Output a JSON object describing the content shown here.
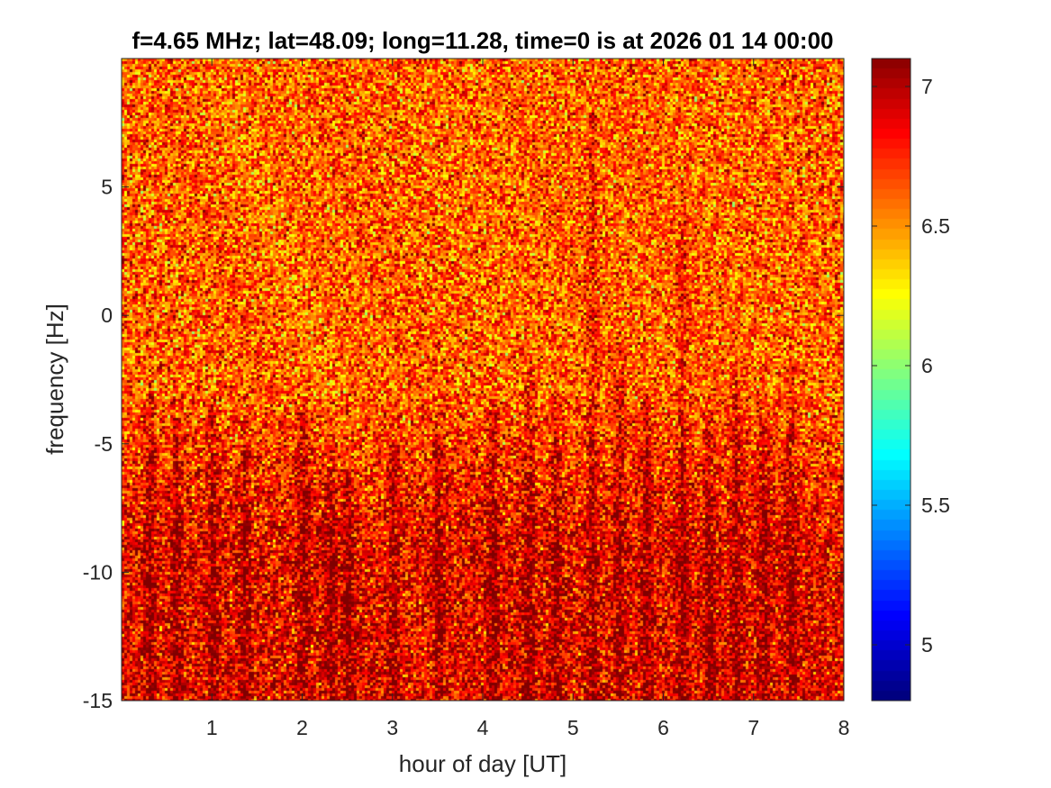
{
  "chart_data": {
    "type": "heatmap",
    "title": "f=4.65 MHz;  lat=48.09; long=11.28, time=0 is at 2026 01 14 00:00",
    "xlabel": "hour of day [UT]",
    "ylabel": "frequency [Hz]",
    "xlim": [
      0,
      8
    ],
    "ylim": [
      -15,
      10
    ],
    "x_ticks": [
      "1",
      "2",
      "3",
      "4",
      "5",
      "6",
      "7",
      "8"
    ],
    "x_tick_values": [
      1,
      2,
      3,
      4,
      5,
      6,
      7,
      8
    ],
    "y_ticks": [
      "5",
      "0",
      "-5",
      "-10",
      "-15"
    ],
    "y_tick_values": [
      5,
      0,
      -5,
      -10,
      -15
    ],
    "colorbar": {
      "colormap": "jet",
      "clim": [
        4.8,
        7.1
      ],
      "ticks": [
        "7",
        "6.5",
        "6",
        "5.5",
        "5"
      ],
      "tick_values": [
        7,
        6.5,
        6,
        5.5,
        5
      ]
    },
    "colors": [
      "#00008f",
      "#0000ff",
      "#0080ff",
      "#00ffff",
      "#80ff80",
      "#ffff00",
      "#ff8000",
      "#ff0000",
      "#800000"
    ],
    "upper_band_level": 6.6,
    "lower_band_level": 6.85,
    "vertical_streaks": [
      {
        "hour": 0.3,
        "top_hz": -3
      },
      {
        "hour": 0.6,
        "top_hz": -4
      },
      {
        "hour": 1.0,
        "top_hz": -3.5
      },
      {
        "hour": 1.35,
        "top_hz": -5
      },
      {
        "hour": 2.0,
        "top_hz": -3.5
      },
      {
        "hour": 2.3,
        "top_hz": -6
      },
      {
        "hour": 2.5,
        "top_hz": -6
      },
      {
        "hour": 3.0,
        "top_hz": -5
      },
      {
        "hour": 3.5,
        "top_hz": -5
      },
      {
        "hour": 4.1,
        "top_hz": -3.5
      },
      {
        "hour": 4.5,
        "top_hz": -1.5
      },
      {
        "hour": 4.8,
        "top_hz": -3
      },
      {
        "hour": 5.2,
        "top_hz": 8
      },
      {
        "hour": 5.5,
        "top_hz": -1
      },
      {
        "hour": 5.8,
        "top_hz": -3
      },
      {
        "hour": 6.2,
        "top_hz": 4
      },
      {
        "hour": 6.5,
        "top_hz": -4
      },
      {
        "hour": 6.8,
        "top_hz": -2
      },
      {
        "hour": 7.1,
        "top_hz": -4
      },
      {
        "hour": 7.4,
        "top_hz": -2
      }
    ]
  }
}
